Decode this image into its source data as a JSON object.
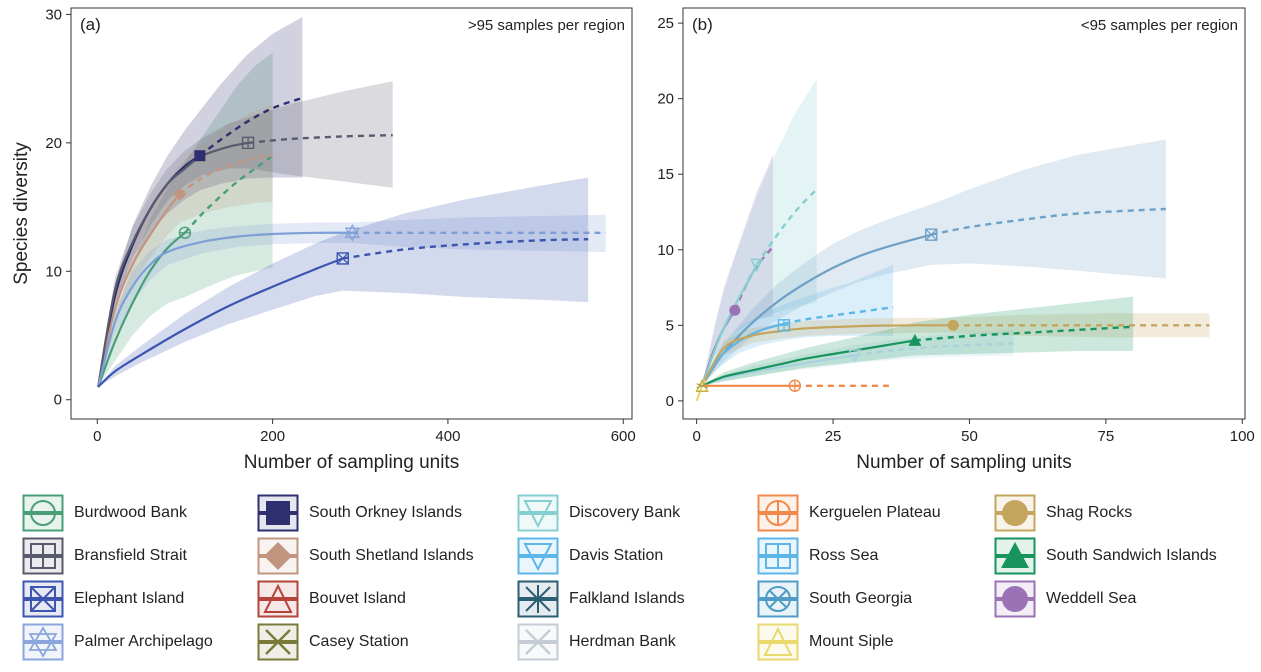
{
  "chart_data": [
    {
      "type": "line",
      "panel_label": "(a)",
      "annotation": ">95 samples per region",
      "xlabel": "Number of sampling units",
      "ylabel": "Species diversity",
      "xlim": [
        -30,
        610
      ],
      "ylim": [
        -1.5,
        30.5
      ],
      "xticks": [
        0,
        200,
        400,
        600
      ],
      "yticks": [
        0,
        10,
        20,
        30
      ],
      "grid": false,
      "series": [
        {
          "name": "Burdwood Bank",
          "color": "#4a9e77",
          "marker": "burdwood",
          "x": [
            1,
            20,
            40,
            60,
            80,
            100,
            120,
            140,
            160,
            180,
            200
          ],
          "y": [
            1,
            4.5,
            7.5,
            10,
            11.8,
            13,
            14.5,
            15.8,
            17,
            18,
            19
          ],
          "ci_low": [
            1,
            3,
            5,
            6.5,
            7.5,
            8,
            8.6,
            9.2,
            9.7,
            10,
            10.3
          ],
          "ci_high": [
            1,
            6.5,
            10.5,
            14,
            16.5,
            18.5,
            20.5,
            22.5,
            24.5,
            26,
            27
          ],
          "obs": [
            100,
            13
          ]
        },
        {
          "name": "South Orkney Islands",
          "color": "#2d2f6e",
          "marker": "orkney",
          "x": [
            1,
            20,
            40,
            60,
            80,
            100,
            117,
            140,
            170,
            200,
            234
          ],
          "y": [
            1,
            8,
            12,
            14.8,
            16.8,
            18.2,
            19,
            20.2,
            21.6,
            22.7,
            23.5
          ],
          "ci_low": [
            1,
            7,
            10.5,
            13,
            14.5,
            15.6,
            16.3,
            16.8,
            17.2,
            17.3,
            17.3
          ],
          "ci_high": [
            1,
            9,
            13.5,
            16.5,
            19,
            21,
            22.5,
            24.5,
            26.8,
            28.5,
            29.8
          ],
          "obs": [
            117,
            19
          ]
        },
        {
          "name": "South Shetland Islands",
          "color": "#c29580",
          "marker": "shetland",
          "x": [
            1,
            20,
            40,
            60,
            80,
            94,
            120,
            150,
            180,
            200
          ],
          "y": [
            1,
            7,
            10.5,
            12.8,
            14.8,
            16,
            17.3,
            18.2,
            18.8,
            19
          ],
          "ci_low": [
            1,
            6,
            9,
            11,
            12.8,
            13.8,
            14.5,
            15,
            15.3,
            15.4
          ],
          "ci_high": [
            1,
            8,
            12,
            14.8,
            17,
            18.3,
            20,
            21.5,
            22.5,
            23
          ],
          "obs": [
            94,
            16
          ]
        },
        {
          "name": "Bransfield Strait",
          "color": "#5a5a6e",
          "marker": "bransfield",
          "x": [
            1,
            20,
            40,
            60,
            80,
            100,
            120,
            150,
            172,
            220,
            280,
            337
          ],
          "y": [
            1,
            8.5,
            12.2,
            14.8,
            16.8,
            18,
            19,
            19.7,
            20,
            20.3,
            20.5,
            20.6
          ],
          "ci_low": [
            1,
            7.5,
            11,
            13.5,
            15.5,
            16.7,
            17.5,
            18,
            18,
            17.5,
            17,
            16.5
          ],
          "ci_high": [
            1,
            9.5,
            13.4,
            16,
            18,
            19.4,
            20.4,
            21.5,
            22,
            23,
            24,
            24.8
          ],
          "obs": [
            172,
            20
          ]
        },
        {
          "name": "Palmer Archipelago",
          "color": "#7e9fd6",
          "marker": "palmer",
          "x": [
            1,
            20,
            40,
            60,
            80,
            120,
            160,
            200,
            250,
            291,
            350,
            420,
            500,
            580
          ],
          "y": [
            1,
            6,
            8.8,
            10.5,
            11.5,
            12.3,
            12.7,
            12.9,
            13,
            13,
            13,
            13,
            13,
            13
          ],
          "ci_low": [
            1,
            5,
            7.5,
            9.3,
            10.5,
            11.4,
            11.9,
            12.1,
            12.2,
            12.2,
            11.9,
            11.7,
            11.6,
            11.5
          ],
          "ci_high": [
            1,
            7,
            10,
            11.6,
            12.5,
            13.2,
            13.5,
            13.7,
            13.8,
            13.8,
            14,
            14.2,
            14.3,
            14.4
          ],
          "obs": [
            291,
            13
          ]
        },
        {
          "name": "Elephant Island",
          "color": "#3c55b0",
          "marker": "elephant",
          "x": [
            1,
            20,
            50,
            100,
            150,
            200,
            250,
            280,
            350,
            420,
            500,
            560
          ],
          "y": [
            1,
            2.2,
            3.5,
            5.5,
            7.3,
            8.8,
            10.2,
            11,
            11.7,
            12.1,
            12.4,
            12.5
          ],
          "ci_low": [
            1,
            1.8,
            2.9,
            4.5,
            5.9,
            7,
            8.1,
            8.5,
            8.3,
            8,
            7.8,
            7.6
          ],
          "ci_high": [
            1,
            2.6,
            4.2,
            6.7,
            8.8,
            10.6,
            12.2,
            13,
            14.5,
            15.6,
            16.6,
            17.3
          ],
          "obs": [
            280,
            11
          ]
        }
      ]
    },
    {
      "type": "line",
      "panel_label": "(b)",
      "annotation": "<95 samples per region",
      "xlabel": "Number of sampling units",
      "ylabel": "",
      "xlim": [
        -2.5,
        100.5
      ],
      "ylim": [
        -1.2,
        26
      ],
      "xticks": [
        0,
        25,
        50,
        75,
        100
      ],
      "yticks": [
        0,
        5,
        10,
        15,
        20,
        25
      ],
      "grid": false,
      "series": [
        {
          "name": "Weddell Sea",
          "color": "#9a72b5",
          "marker": "weddell",
          "x": [
            1,
            3,
            5,
            7,
            9,
            11,
            14
          ],
          "y": [
            1,
            3.2,
            4.8,
            6,
            7.6,
            8.9,
            10.2
          ],
          "ci_low": [
            1,
            2.8,
            3.8,
            4.5,
            5,
            5.4,
            5.6
          ],
          "ci_high": [
            1,
            4.5,
            7.5,
            9.6,
            11.7,
            13.8,
            16.3
          ],
          "obs": [
            7,
            6
          ]
        },
        {
          "name": "Discovery Bank",
          "color": "#86cfd0",
          "marker": "discovery",
          "x": [
            1,
            4,
            7,
            10,
            11,
            14,
            18,
            22
          ],
          "y": [
            1,
            4,
            6.3,
            8.3,
            9,
            10.6,
            12.5,
            14
          ],
          "ci_low": [
            1,
            3,
            4.2,
            5,
            5.3,
            5.8,
            6.2,
            6.5
          ],
          "ci_high": [
            1,
            6,
            9.5,
            12.5,
            13.5,
            16,
            19,
            21.3
          ],
          "obs": [
            11,
            9
          ]
        },
        {
          "name": "South Georgia",
          "color": "#6fa0c6",
          "marker": "georgia",
          "x": [
            1,
            5,
            10,
            15,
            20,
            25,
            30,
            35,
            43,
            50,
            60,
            70,
            86
          ],
          "y": [
            1,
            3.2,
            5.1,
            6.6,
            7.8,
            8.8,
            9.6,
            10.2,
            11,
            11.5,
            12,
            12.4,
            12.7
          ],
          "ci_low": [
            1,
            2.6,
            4.2,
            5.4,
            6.4,
            7.2,
            7.9,
            8.4,
            9,
            9.1,
            8.9,
            8.6,
            8.1
          ],
          "ci_high": [
            1,
            3.8,
            6,
            7.8,
            9.2,
            10.4,
            11.3,
            12,
            13,
            14,
            15.3,
            16.3,
            17.3
          ],
          "obs": [
            43,
            11
          ]
        },
        {
          "name": "Ross Sea",
          "color": "#5db6e8",
          "marker": "ross",
          "x": [
            1,
            4,
            8,
            12,
            16,
            20,
            24,
            28,
            36
          ],
          "y": [
            1,
            2.8,
            4,
            4.7,
            5.1,
            5.4,
            5.6,
            5.8,
            6.2
          ],
          "ci_low": [
            1,
            2.2,
            3.2,
            3.7,
            4,
            4.2,
            4.3,
            4.3,
            4.3
          ],
          "ci_high": [
            1,
            3.4,
            4.9,
            5.8,
            6.4,
            6.9,
            7.4,
            7.8,
            9
          ],
          "obs": [
            16,
            5
          ]
        },
        {
          "name": "Shag Rocks",
          "color": "#c4a55d",
          "marker": "shag",
          "x": [
            1,
            5,
            10,
            15,
            20,
            30,
            40,
            47,
            60,
            75,
            94
          ],
          "y": [
            1,
            3.5,
            4.3,
            4.6,
            4.8,
            4.95,
            5,
            5,
            5,
            5,
            5
          ],
          "ci_low": [
            1,
            3,
            3.8,
            4.1,
            4.3,
            4.45,
            4.5,
            4.5,
            4.3,
            4.2,
            4.2
          ],
          "ci_high": [
            1,
            4,
            4.8,
            5.1,
            5.3,
            5.45,
            5.5,
            5.5,
            5.7,
            5.8,
            5.8
          ],
          "obs": [
            47,
            5
          ]
        },
        {
          "name": "Davis Station",
          "color": "#a9d2de",
          "marker": "davis",
          "x": [
            1,
            5,
            10,
            15,
            20,
            25,
            29,
            35,
            45,
            58
          ],
          "y": [
            1,
            1.5,
            1.9,
            2.2,
            2.5,
            2.8,
            3,
            3.3,
            3.6,
            3.8
          ],
          "ci_low": [
            1,
            1.3,
            1.6,
            1.9,
            2.1,
            2.3,
            2.5,
            2.7,
            2.9,
            3
          ],
          "ci_high": [
            1,
            1.7,
            2.3,
            2.7,
            3.1,
            3.4,
            3.7,
            4,
            4.4,
            4.7
          ],
          "obs": [
            29,
            3
          ]
        },
        {
          "name": "South Sandwich Islands",
          "color": "#18945e",
          "marker": "sandwich",
          "x": [
            1,
            5,
            10,
            15,
            20,
            25,
            30,
            35,
            40,
            50,
            60,
            70,
            80
          ],
          "y": [
            1,
            1.6,
            2,
            2.4,
            2.8,
            3.1,
            3.4,
            3.7,
            4,
            4.3,
            4.5,
            4.7,
            4.9
          ],
          "ci_low": [
            1,
            1.3,
            1.6,
            1.9,
            2.2,
            2.4,
            2.6,
            2.8,
            3,
            3.1,
            3.2,
            3.3,
            3.3
          ],
          "ci_high": [
            1,
            1.9,
            2.5,
            3,
            3.5,
            3.9,
            4.3,
            4.7,
            5.2,
            5.7,
            6.1,
            6.5,
            6.9
          ],
          "obs": [
            40,
            4
          ]
        },
        {
          "name": "Kerguelen Plateau",
          "color": "#f08a4b",
          "marker": "kerguelen",
          "x": [
            1,
            2,
            5,
            10,
            18,
            25,
            36
          ],
          "y": [
            1,
            1,
            1,
            1,
            1,
            1,
            1
          ],
          "ci_low": [
            1,
            1,
            1,
            1,
            1,
            1,
            1
          ],
          "ci_high": [
            1,
            1,
            1,
            1,
            1,
            1,
            1
          ],
          "obs": [
            18,
            1
          ]
        },
        {
          "name": "Mount Siple",
          "color": "#e8d86e",
          "marker": "siple",
          "x": [
            0,
            0.5,
            1,
            1.5,
            2
          ],
          "y": [
            0,
            0.5,
            1,
            1.3,
            1.5
          ],
          "ci_low": [
            0,
            0.4,
            1,
            1.2,
            1.3
          ],
          "ci_high": [
            0,
            0.6,
            1,
            1.4,
            1.7
          ],
          "obs": [
            1,
            1
          ]
        }
      ]
    }
  ],
  "legend": {
    "columns": [
      [
        {
          "label": "Burdwood Bank",
          "color": "#4a9e77",
          "icon": "burdwood-bank-icon",
          "glyph": "circle-line"
        },
        {
          "label": "Bransfield Strait",
          "color": "#5a5a6e",
          "icon": "bransfield-strait-icon",
          "glyph": "square-grid"
        },
        {
          "label": "Elephant Island",
          "color": "#3c55b0",
          "icon": "elephant-island-icon",
          "glyph": "box-x"
        },
        {
          "label": "Palmer Archipelago",
          "color": "#8aa6dc",
          "icon": "palmer-archipelago-icon",
          "glyph": "star"
        }
      ],
      [
        {
          "label": "South Orkney Islands",
          "color": "#2d2f6e",
          "icon": "south-orkney-islands-icon",
          "glyph": "filled-square"
        },
        {
          "label": "South Shetland Islands",
          "color": "#c29580",
          "icon": "south-shetland-islands-icon",
          "glyph": "filled-diamond"
        },
        {
          "label": "Bouvet Island",
          "color": "#b5433a",
          "icon": "bouvet-island-icon",
          "glyph": "triangle"
        },
        {
          "label": "Casey Station",
          "color": "#7a7a38",
          "icon": "casey-station-icon",
          "glyph": "x"
        }
      ],
      [
        {
          "label": "Discovery Bank",
          "color": "#86cfd0",
          "icon": "discovery-bank-icon",
          "glyph": "down-triangle"
        },
        {
          "label": "Davis Station",
          "color": "#5db6e8",
          "icon": "davis-station-icon",
          "glyph": "down-triangle"
        },
        {
          "label": "Falkland Islands",
          "color": "#2b5e73",
          "icon": "falkland-islands-icon",
          "glyph": "asterisk"
        },
        {
          "label": "Herdman Bank",
          "color": "#c5ccd6",
          "icon": "herdman-bank-icon",
          "glyph": "x"
        }
      ],
      [
        {
          "label": "Kerguelen Plateau",
          "color": "#f08a4b",
          "icon": "kerguelen-plateau-icon",
          "glyph": "circle-plus"
        },
        {
          "label": "Ross Sea",
          "color": "#5db6e8",
          "icon": "ross-sea-icon",
          "glyph": "square-plus"
        },
        {
          "label": "South Georgia",
          "color": "#4f9cc6",
          "icon": "south-georgia-icon",
          "glyph": "circle-x"
        },
        {
          "label": "Mount Siple",
          "color": "#e8d86e",
          "icon": "mount-siple-icon",
          "glyph": "triangle"
        }
      ],
      [
        {
          "label": "Shag Rocks",
          "color": "#c4a55d",
          "icon": "shag-rocks-icon",
          "glyph": "filled-circle"
        },
        {
          "label": "South Sandwich Islands",
          "color": "#18945e",
          "icon": "south-sandwich-islands-icon",
          "glyph": "filled-triangle"
        },
        {
          "label": "Weddell Sea",
          "color": "#9a72b5",
          "icon": "weddell-sea-icon",
          "glyph": "filled-circle"
        }
      ]
    ]
  }
}
